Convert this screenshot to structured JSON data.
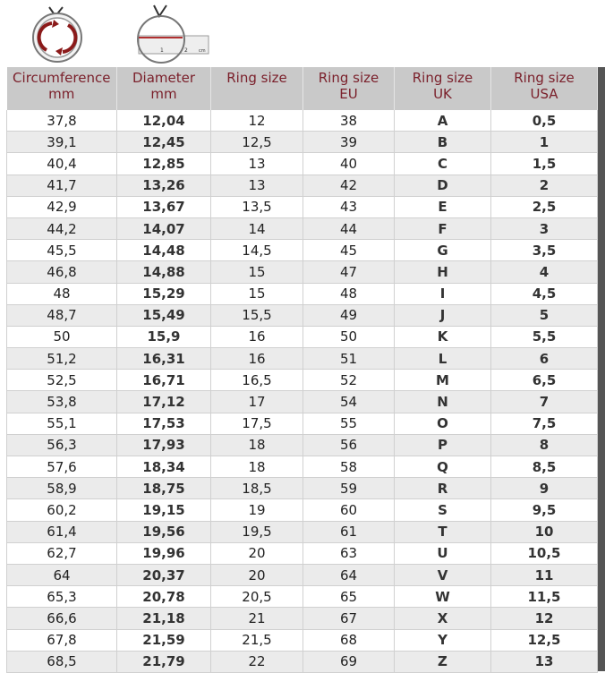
{
  "colors": {
    "header_bg": "#c9c9c9",
    "header_text": "#7a1f2a",
    "row_alt": "#ebebeb",
    "icon_accent": "#8b1a1a"
  },
  "icons": [
    "ring-circumference-icon",
    "ring-diameter-ruler-icon"
  ],
  "headers": [
    [
      "Circumference",
      "mm"
    ],
    [
      "Diameter",
      "mm"
    ],
    [
      "Ring size",
      ""
    ],
    [
      "Ring size",
      "EU"
    ],
    [
      "Ring size",
      "UK"
    ],
    [
      "Ring size",
      "USA"
    ]
  ],
  "rows": [
    [
      "37,8",
      "12,04",
      "12",
      "38",
      "A",
      "0,5"
    ],
    [
      "39,1",
      "12,45",
      "12,5",
      "39",
      "B",
      "1"
    ],
    [
      "40,4",
      "12,85",
      "13",
      "40",
      "C",
      "1,5"
    ],
    [
      "41,7",
      "13,26",
      "13",
      "42",
      "D",
      "2"
    ],
    [
      "42,9",
      "13,67",
      "13,5",
      "43",
      "E",
      "2,5"
    ],
    [
      "44,2",
      "14,07",
      "14",
      "44",
      "F",
      "3"
    ],
    [
      "45,5",
      "14,48",
      "14,5",
      "45",
      "G",
      "3,5"
    ],
    [
      "46,8",
      "14,88",
      "15",
      "47",
      "H",
      "4"
    ],
    [
      "48",
      "15,29",
      "15",
      "48",
      "I",
      "4,5"
    ],
    [
      "48,7",
      "15,49",
      "15,5",
      "49",
      "J",
      "5"
    ],
    [
      "50",
      "15,9",
      "16",
      "50",
      "K",
      "5,5"
    ],
    [
      "51,2",
      "16,31",
      "16",
      "51",
      "L",
      "6"
    ],
    [
      "52,5",
      "16,71",
      "16,5",
      "52",
      "M",
      "6,5"
    ],
    [
      "53,8",
      "17,12",
      "17",
      "54",
      "N",
      "7"
    ],
    [
      "55,1",
      "17,53",
      "17,5",
      "55",
      "O",
      "7,5"
    ],
    [
      "56,3",
      "17,93",
      "18",
      "56",
      "P",
      "8"
    ],
    [
      "57,6",
      "18,34",
      "18",
      "58",
      "Q",
      "8,5"
    ],
    [
      "58,9",
      "18,75",
      "18,5",
      "59",
      "R",
      "9"
    ],
    [
      "60,2",
      "19,15",
      "19",
      "60",
      "S",
      "9,5"
    ],
    [
      "61,4",
      "19,56",
      "19,5",
      "61",
      "T",
      "10"
    ],
    [
      "62,7",
      "19,96",
      "20",
      "63",
      "U",
      "10,5"
    ],
    [
      "64",
      "20,37",
      "20",
      "64",
      "V",
      "11"
    ],
    [
      "65,3",
      "20,78",
      "20,5",
      "65",
      "W",
      "11,5"
    ],
    [
      "66,6",
      "21,18",
      "21",
      "67",
      "X",
      "12"
    ],
    [
      "67,8",
      "21,59",
      "21,5",
      "68",
      "Y",
      "12,5"
    ],
    [
      "68,5",
      "21,79",
      "22",
      "69",
      "Z",
      "13"
    ]
  ],
  "ruler_labels": [
    "1",
    "2",
    "cm"
  ]
}
